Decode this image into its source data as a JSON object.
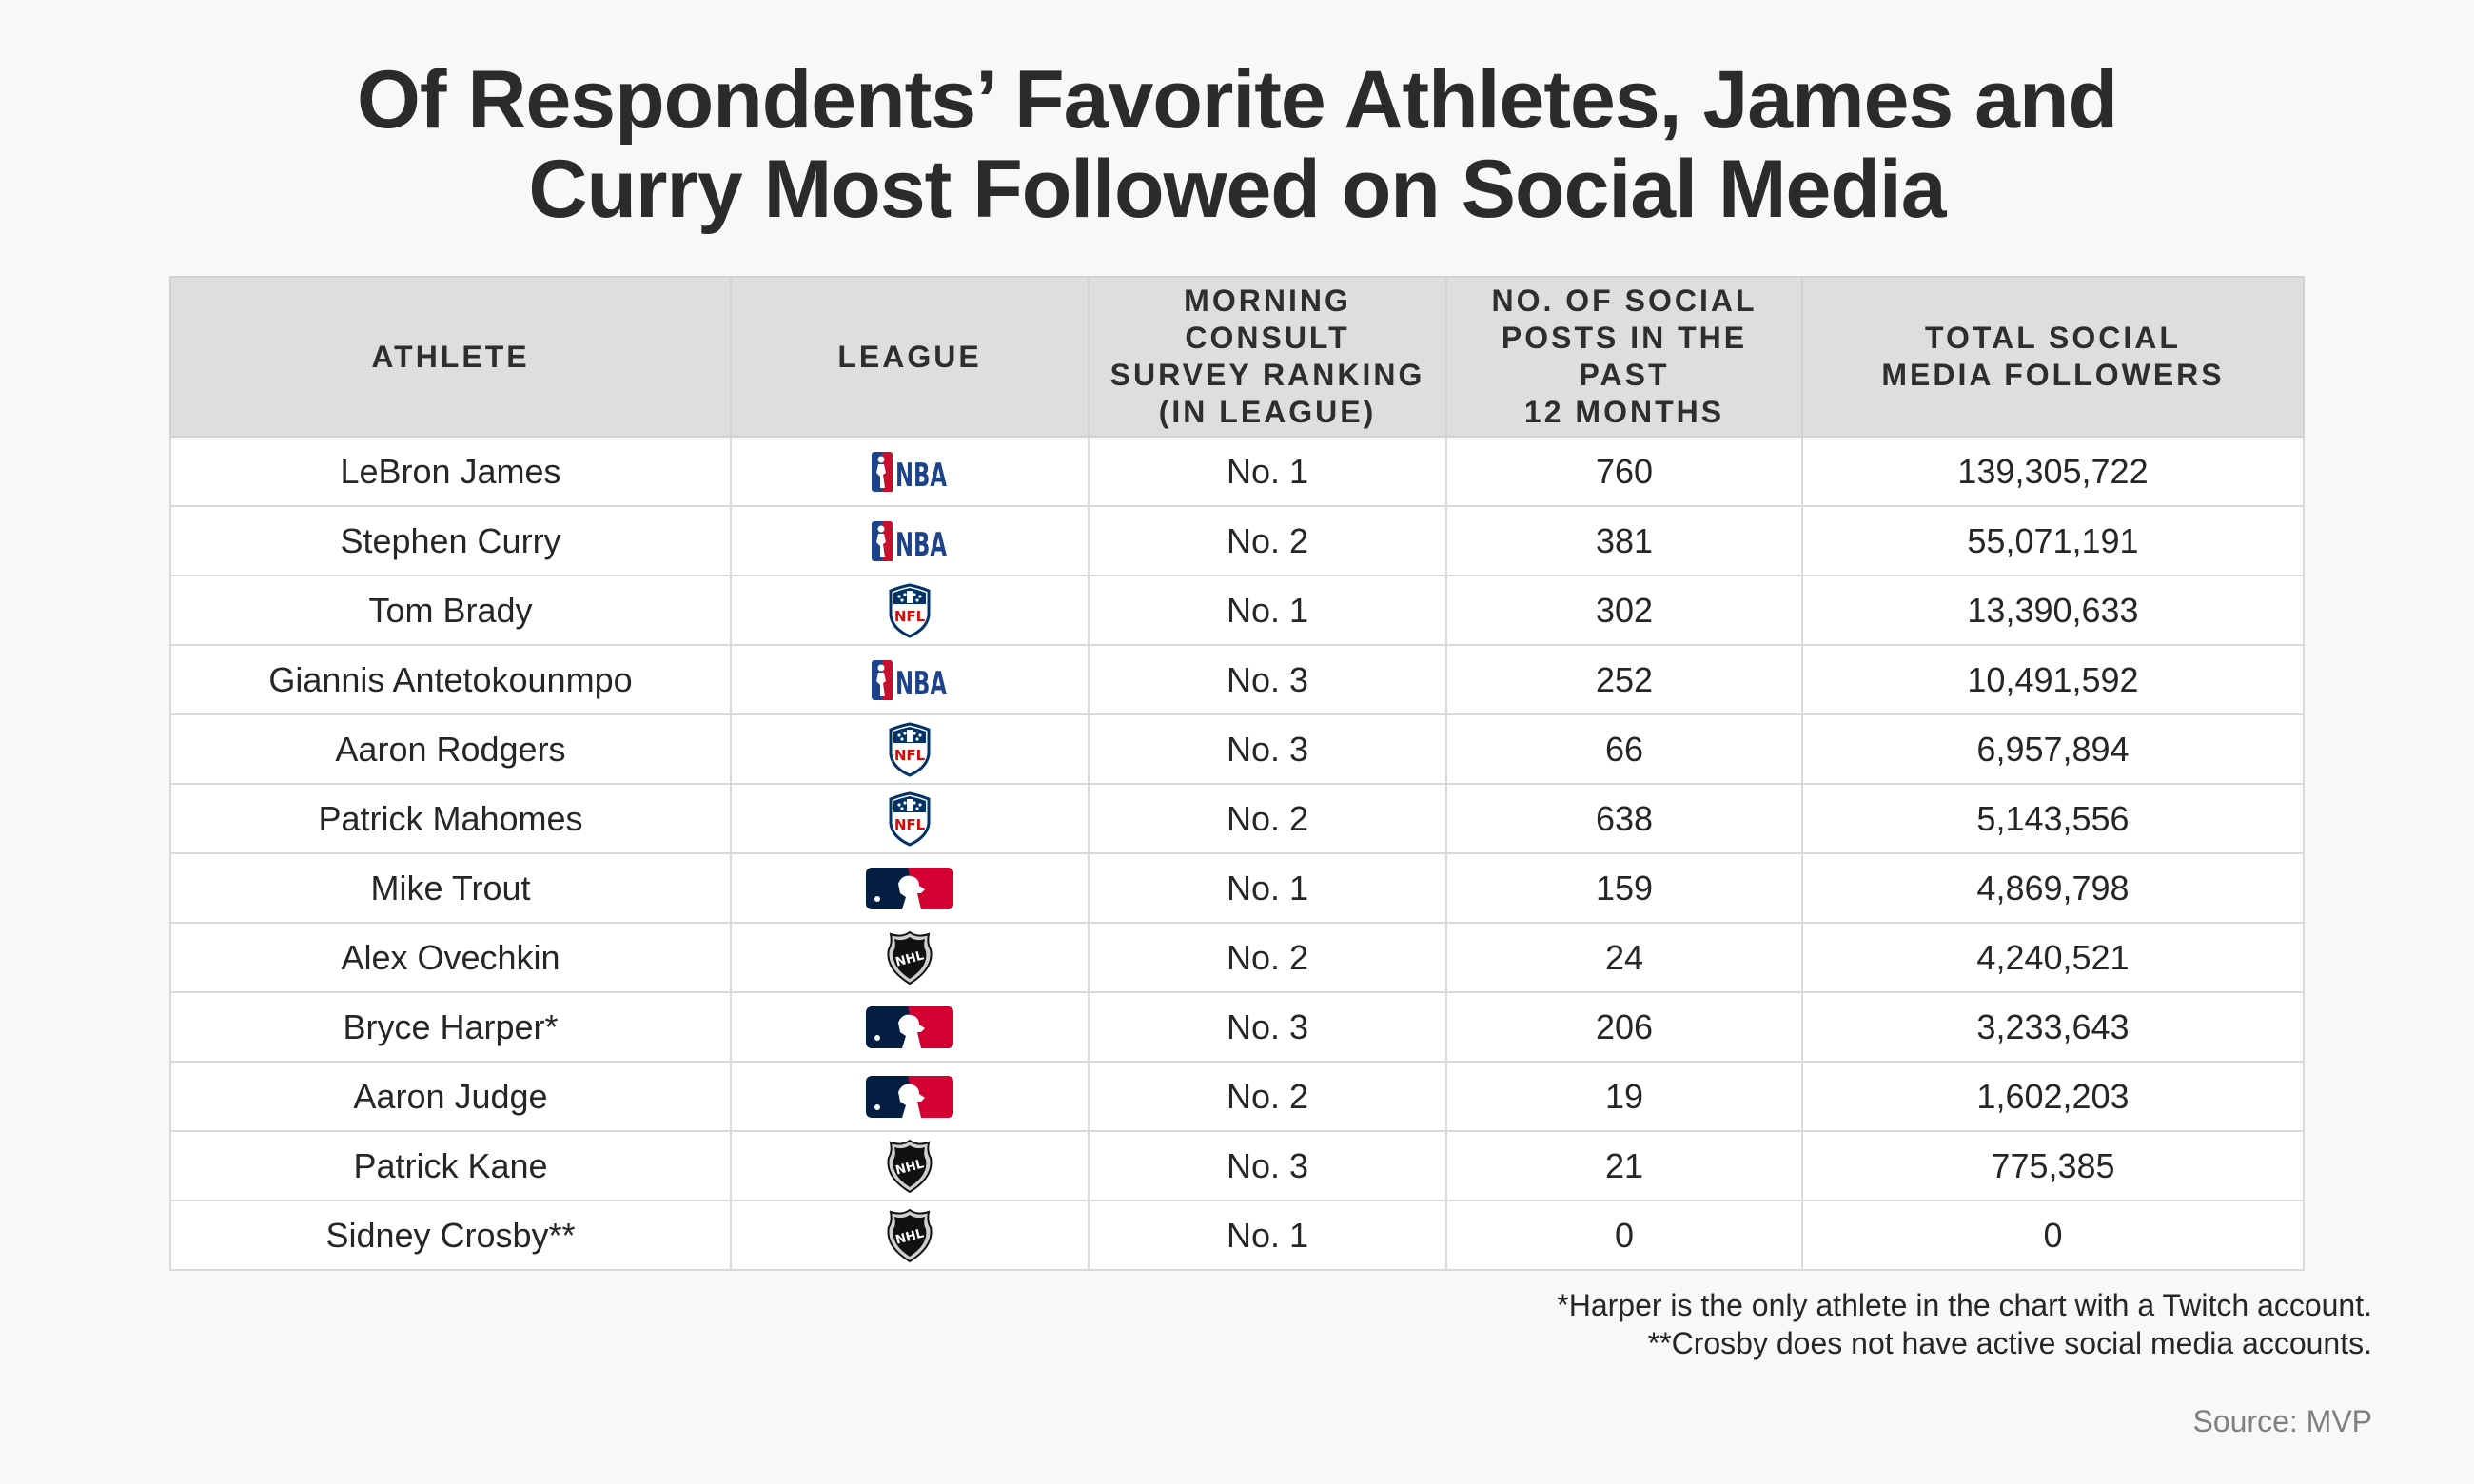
{
  "title": {
    "line1": "Of Respondents’ Favorite Athletes, James and",
    "line2": "Curry Most Followed on Social Media"
  },
  "columns": {
    "athlete": "ATHLETE",
    "league": "LEAGUE",
    "ranking_l1": "MORNING CONSULT",
    "ranking_l2": "SURVEY RANKING",
    "ranking_l3": "(IN LEAGUE)",
    "posts_l1": "NO. OF SOCIAL",
    "posts_l2": "POSTS IN THE PAST",
    "posts_l3": "12 MONTHS",
    "followers_l1": "TOTAL SOCIAL",
    "followers_l2": "MEDIA FOLLOWERS"
  },
  "chart_data": {
    "type": "table",
    "title": "Of Respondents’ Favorite Athletes, James and Curry Most Followed on Social Media",
    "columns": [
      "ATHLETE",
      "LEAGUE",
      "MORNING CONSULT SURVEY RANKING (IN LEAGUE)",
      "NO. OF SOCIAL POSTS IN THE PAST 12 MONTHS",
      "TOTAL SOCIAL MEDIA FOLLOWERS"
    ],
    "rows": [
      {
        "athlete": "LeBron James",
        "league": "NBA",
        "ranking": "No. 1",
        "posts": "760",
        "followers": "139,305,722"
      },
      {
        "athlete": "Stephen Curry",
        "league": "NBA",
        "ranking": "No. 2",
        "posts": "381",
        "followers": "55,071,191"
      },
      {
        "athlete": "Tom Brady",
        "league": "NFL",
        "ranking": "No. 1",
        "posts": "302",
        "followers": "13,390,633"
      },
      {
        "athlete": "Giannis Antetokounmpo",
        "league": "NBA",
        "ranking": "No. 3",
        "posts": "252",
        "followers": "10,491,592"
      },
      {
        "athlete": "Aaron Rodgers",
        "league": "NFL",
        "ranking": "No. 3",
        "posts": "66",
        "followers": "6,957,894"
      },
      {
        "athlete": "Patrick Mahomes",
        "league": "NFL",
        "ranking": "No. 2",
        "posts": "638",
        "followers": "5,143,556"
      },
      {
        "athlete": "Mike Trout",
        "league": "MLB",
        "ranking": "No. 1",
        "posts": "159",
        "followers": "4,869,798"
      },
      {
        "athlete": "Alex Ovechkin",
        "league": "NHL",
        "ranking": "No. 2",
        "posts": "24",
        "followers": "4,240,521"
      },
      {
        "athlete": "Bryce Harper*",
        "league": "MLB",
        "ranking": "No. 3",
        "posts": "206",
        "followers": "3,233,643"
      },
      {
        "athlete": "Aaron Judge",
        "league": "MLB",
        "ranking": "No. 2",
        "posts": "19",
        "followers": "1,602,203"
      },
      {
        "athlete": "Patrick Kane",
        "league": "NHL",
        "ranking": "No. 3",
        "posts": "21",
        "followers": "775,385"
      },
      {
        "athlete": "Sidney Crosby**",
        "league": "NHL",
        "ranking": "No. 1",
        "posts": "0",
        "followers": "0"
      }
    ]
  },
  "league_logos": {
    "NBA": {
      "icon": "nba-logo-icon",
      "text": "NBA",
      "colors": {
        "blue": "#1d428a",
        "red": "#c8102e"
      }
    },
    "NFL": {
      "icon": "nfl-logo-icon",
      "text": "NFL",
      "colors": {
        "blue": "#013369",
        "red": "#d50a0a"
      }
    },
    "MLB": {
      "icon": "mlb-logo-icon",
      "colors": {
        "blue": "#041e42",
        "red": "#d50032"
      }
    },
    "NHL": {
      "icon": "nhl-logo-icon",
      "text": "NHL",
      "colors": {
        "black": "#111111"
      }
    }
  },
  "footnotes": {
    "note1": "*Harper is the only athlete in the chart with a Twitch account.",
    "note2": "**Crosby does not have active social media accounts."
  },
  "source": "Source: MVP"
}
